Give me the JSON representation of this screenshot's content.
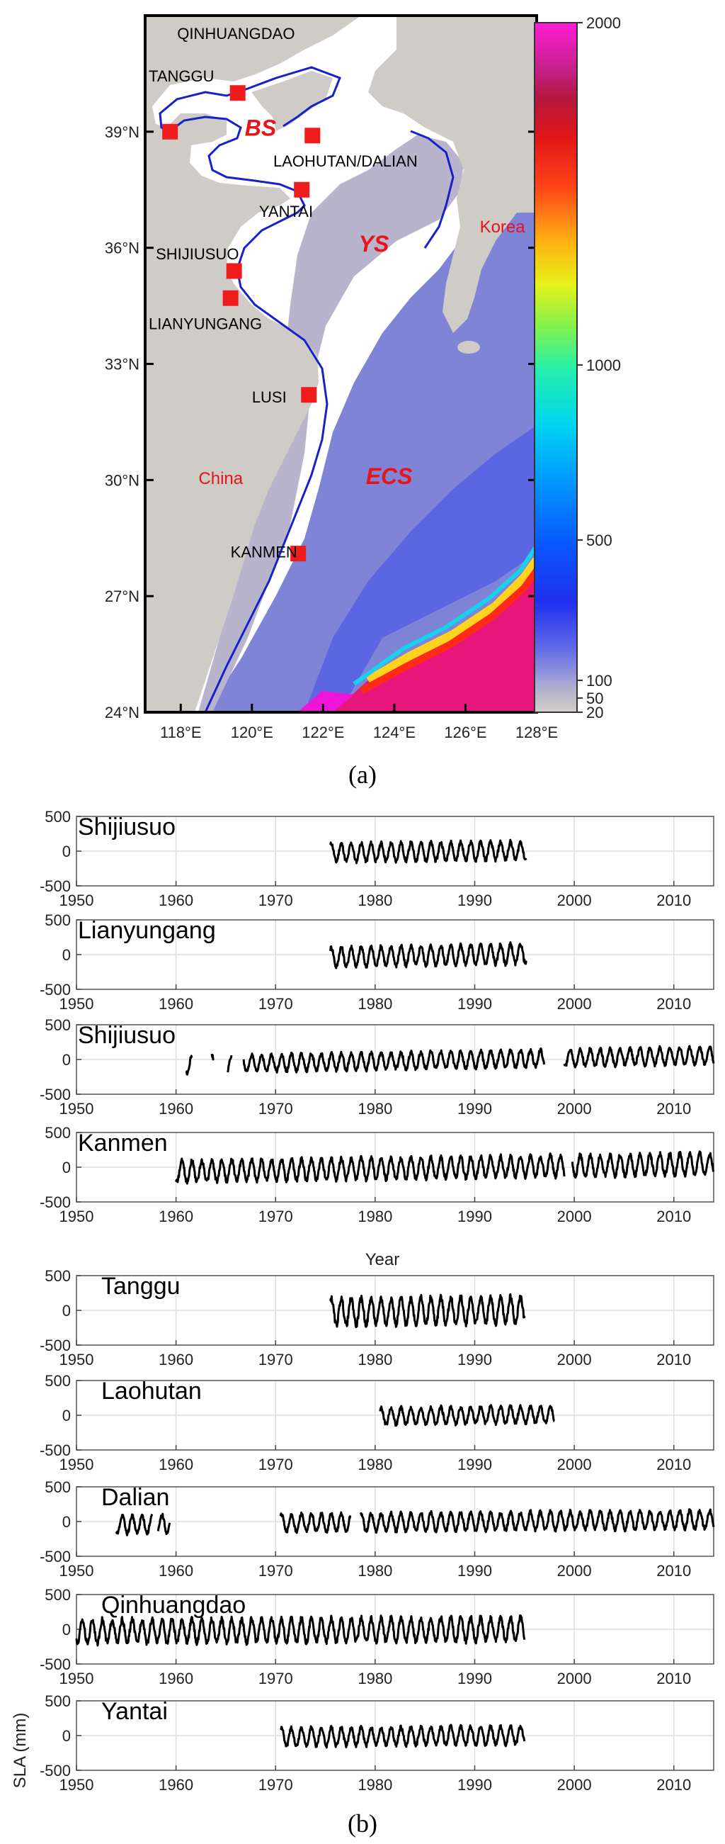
{
  "map": {
    "label": "(a)",
    "lat_ticks": [
      "24°N",
      "27°N",
      "30°N",
      "33°N",
      "36°N",
      "39°N"
    ],
    "lat_values": [
      24,
      27,
      30,
      33,
      36,
      39
    ],
    "lon_ticks": [
      "118°E",
      "120°E",
      "122°E",
      "124°E",
      "126°E",
      "128°E"
    ],
    "lon_values": [
      118,
      120,
      122,
      124,
      126,
      128
    ],
    "lat_range": [
      24,
      42
    ],
    "lon_range": [
      117,
      128
    ],
    "regions": [
      {
        "name": "BS",
        "lon": 119.8,
        "lat": 38.9
      },
      {
        "name": "YS",
        "lon": 123.0,
        "lat": 35.9
      },
      {
        "name": "ECS",
        "lon": 123.2,
        "lat": 29.9
      }
    ],
    "countries": [
      {
        "name": "China",
        "lon": 118.5,
        "lat": 29.9
      },
      {
        "name": "Korea",
        "lon": 126.4,
        "lat": 36.4
      }
    ],
    "stations": [
      {
        "name": "QINHUANGDAO",
        "lon": 119.6,
        "lat": 40.0,
        "label_lon": 117.9,
        "label_lat": 41.4
      },
      {
        "name": "TANGGU",
        "lon": 117.7,
        "lat": 39.0,
        "label_lon": 117.1,
        "label_lat": 40.3
      },
      {
        "name": "LAOHUTAN/DALIAN",
        "lon": 121.7,
        "lat": 38.9,
        "label_lon": 120.6,
        "label_lat": 38.1
      },
      {
        "name": "YANTAI",
        "lon": 121.4,
        "lat": 37.5,
        "label_lon": 120.2,
        "label_lat": 36.8
      },
      {
        "name": "SHIJIUSUO",
        "lon": 119.5,
        "lat": 35.4,
        "label_lon": 117.3,
        "label_lat": 35.7
      },
      {
        "name": "LIANYUNGANG",
        "lon": 119.4,
        "lat": 34.7,
        "label_lon": 117.1,
        "label_lat": 33.9
      },
      {
        "name": "LUSI",
        "lon": 121.6,
        "lat": 32.2,
        "label_lon": 120.0,
        "label_lat": 32.0
      },
      {
        "name": "KANMEN",
        "lon": 121.3,
        "lat": 28.1,
        "label_lon": 119.4,
        "label_lat": 28.0
      }
    ]
  },
  "colorbar": {
    "tick_labels": [
      "20",
      "50",
      "100",
      "500",
      "1000",
      "2000"
    ],
    "tick_values": [
      20,
      50,
      100,
      500,
      1000,
      2000
    ]
  },
  "chart_data": {
    "type": "line",
    "label": "(b)",
    "xlabel": "Year",
    "xlabel_ticks": [
      "1950",
      "1960",
      "1970",
      "1980",
      "1990",
      "2000",
      "2010"
    ],
    "ylabel": "SLA (mm)",
    "yticks": [
      "500",
      "0",
      "-500"
    ],
    "xlim": [
      1950,
      2014
    ],
    "ylim": [
      -500,
      500
    ],
    "grid": true,
    "series": [
      {
        "name": "Shijiusuo",
        "segments": [
          [
            1975.5,
            1995.2
          ]
        ],
        "amplitude": 130,
        "trend": 1.5
      },
      {
        "name": "Lianyungang",
        "segments": [
          [
            1975.5,
            1995.2
          ]
        ],
        "amplitude": 140,
        "trend": 2.5
      },
      {
        "name": "Shijiusuo",
        "segments": [
          [
            1961,
            1961.6
          ],
          [
            1963.6,
            1963.8
          ],
          [
            1965.2,
            1965.6
          ],
          [
            1966.8,
            1997
          ],
          [
            1999,
            2014
          ]
        ],
        "amplitude": 120,
        "trend": 2.5
      },
      {
        "name": "Kanmen",
        "segments": [
          [
            1960,
            1999
          ],
          [
            1999.8,
            2014
          ]
        ],
        "amplitude": 150,
        "trend": 2.0
      },
      {
        "name": "Tanggu",
        "segments": [
          [
            1975.5,
            1995
          ]
        ],
        "amplitude": 190,
        "trend": 1.5
      },
      {
        "name": "Laohutan",
        "segments": [
          [
            1980.5,
            1998
          ]
        ],
        "amplitude": 120,
        "trend": 1.5
      },
      {
        "name": "Dalian",
        "segments": [
          [
            1954,
            1957.6
          ],
          [
            1958.2,
            1959.4
          ],
          [
            1970.5,
            1977.5
          ],
          [
            1978.5,
            2014
          ]
        ],
        "amplitude": 130,
        "trend": 1.2
      },
      {
        "name": "Qinhuangdao",
        "segments": [
          [
            1950,
            1995
          ]
        ],
        "amplitude": 170,
        "trend": 0.8
      },
      {
        "name": "Yantai",
        "segments": [
          [
            1970.5,
            1995
          ]
        ],
        "amplitude": 130,
        "trend": 1.0
      }
    ]
  }
}
